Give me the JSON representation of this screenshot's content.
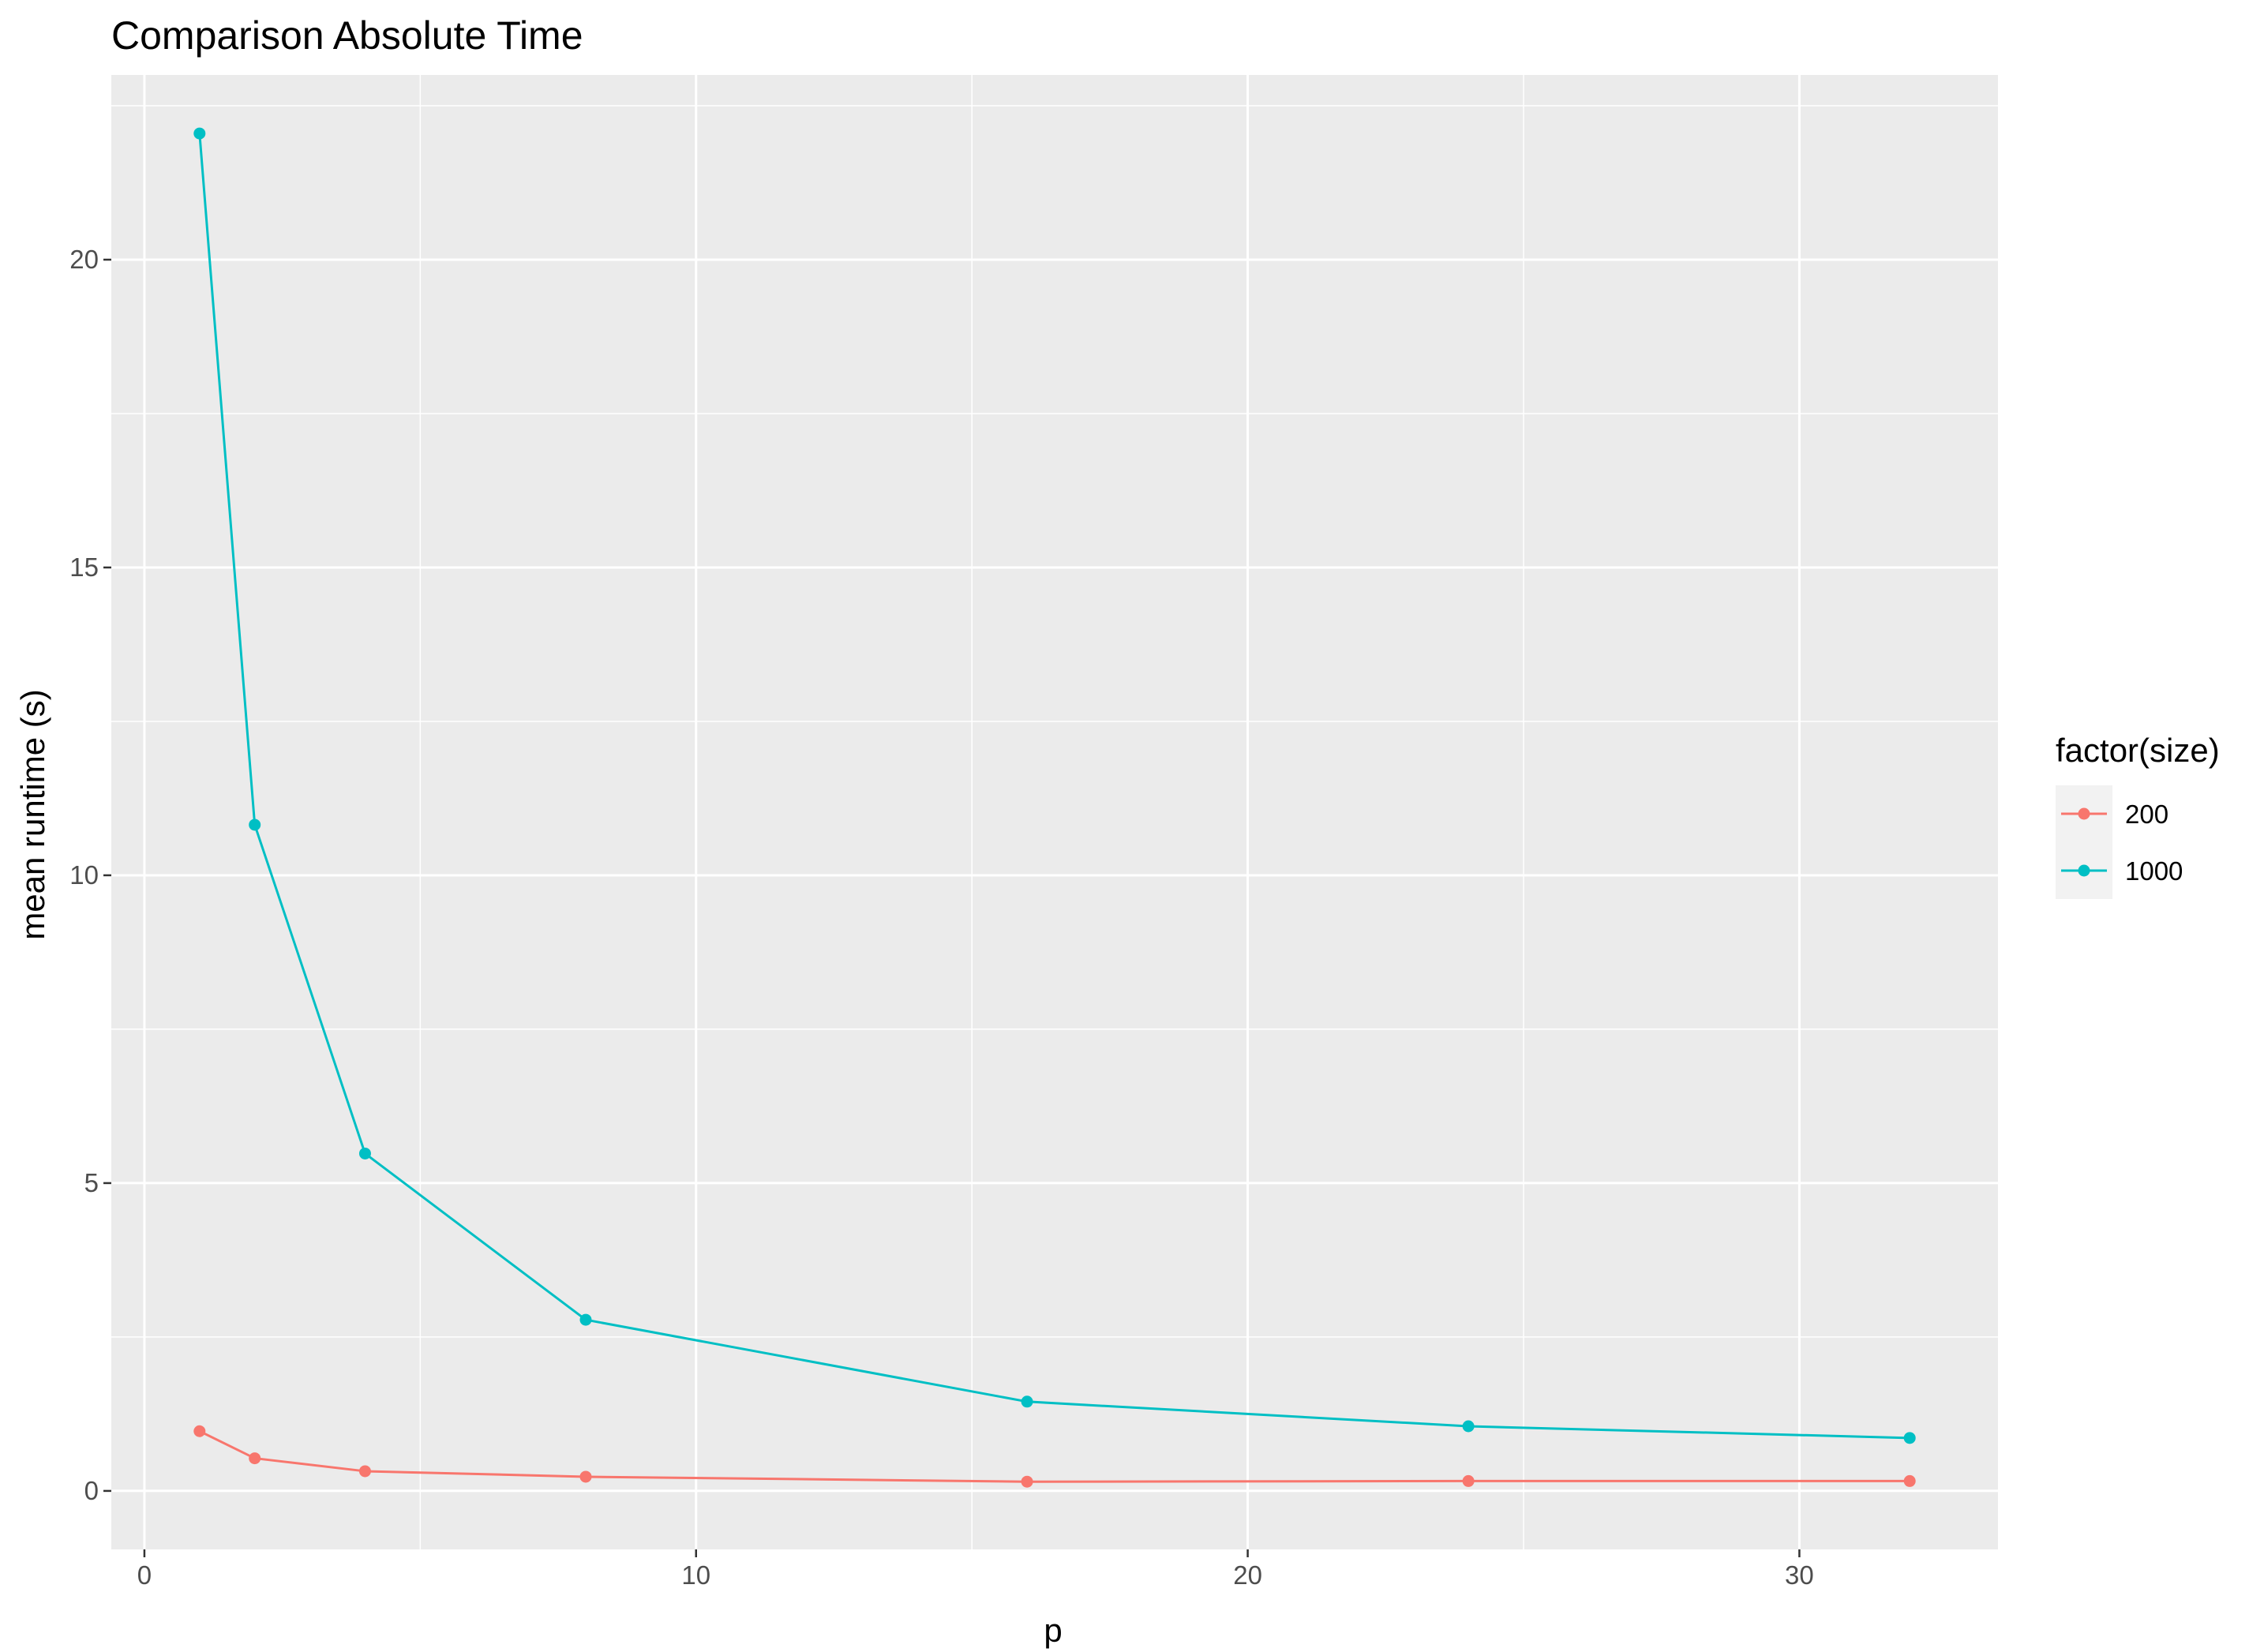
{
  "chart_data": {
    "type": "line",
    "title": "Comparison Absolute Time",
    "xlabel": "p",
    "ylabel": "mean runtime (s)",
    "xlim": [
      -0.6,
      33.6
    ],
    "ylim": [
      -0.95,
      23.0
    ],
    "x_ticks": [
      0,
      10,
      20,
      30
    ],
    "x_tick_labels": [
      "0",
      "10",
      "20",
      "30"
    ],
    "y_ticks": [
      0,
      5,
      10,
      15,
      20
    ],
    "y_tick_labels": [
      "0",
      "5",
      "10",
      "15",
      "20"
    ],
    "grid": true,
    "legend": {
      "title": "factor(size)",
      "position": "right"
    },
    "x": [
      1,
      2,
      4,
      8,
      16,
      24,
      32
    ],
    "series": [
      {
        "name": "200",
        "color": "#F8766D",
        "values": [
          0.97,
          0.53,
          0.32,
          0.23,
          0.15,
          0.16,
          0.16
        ]
      },
      {
        "name": "1000",
        "color": "#00BFC4",
        "values": [
          22.05,
          10.82,
          5.48,
          2.78,
          1.45,
          1.05,
          0.86
        ]
      }
    ],
    "panel_background": "#EBEBEB",
    "grid_color": "#FFFFFF"
  }
}
